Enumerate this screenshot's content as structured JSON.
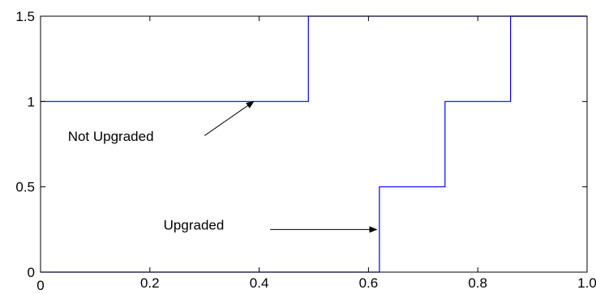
{
  "chart_data": {
    "type": "line",
    "step": true,
    "title": "",
    "xlabel": "",
    "ylabel": "",
    "xlim": [
      0,
      1.0
    ],
    "ylim": [
      0,
      1.5
    ],
    "grid": false,
    "x_ticks": [
      {
        "value": 0,
        "label": "0"
      },
      {
        "value": 0.2,
        "label": "0.2"
      },
      {
        "value": 0.4,
        "label": "0.4"
      },
      {
        "value": 0.6,
        "label": "0.6"
      },
      {
        "value": 0.8,
        "label": "0.8"
      },
      {
        "value": 1.0,
        "label": "1.0"
      }
    ],
    "y_ticks": [
      {
        "value": 0,
        "label": "0"
      },
      {
        "value": 0.5,
        "label": "0.5"
      },
      {
        "value": 1,
        "label": "1"
      },
      {
        "value": 1.5,
        "label": "1.5"
      }
    ],
    "series": [
      {
        "color": "#0000ff",
        "x": [
          0,
          0.49,
          0.49,
          1.0
        ],
        "y": [
          1,
          1,
          1.5,
          1.5
        ]
      },
      {
        "color": "#0000ff",
        "x": [
          0,
          0.62,
          0.62,
          0.74,
          0.74,
          0.86,
          0.86,
          1.0
        ],
        "y": [
          0,
          0,
          0.5,
          0.5,
          1,
          1,
          1.5,
          1.5
        ]
      }
    ],
    "annotations": [
      {
        "text": "Not Upgraded",
        "text_x": 0.05,
        "text_y": 0.77,
        "arrow_from": [
          0.3,
          0.8
        ],
        "arrow_to": [
          0.39,
          1.0
        ]
      },
      {
        "text": "Upgraded",
        "text_x": 0.225,
        "text_y": 0.25,
        "arrow_from": [
          0.42,
          0.25
        ],
        "arrow_to": [
          0.615,
          0.25
        ]
      }
    ]
  }
}
